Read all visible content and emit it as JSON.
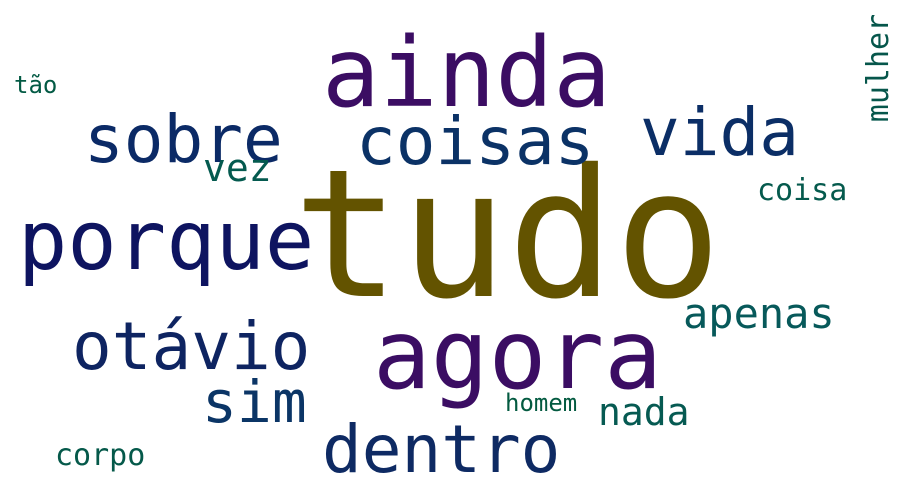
{
  "words": [
    {
      "text": "tudo",
      "color": "#635300"
    },
    {
      "text": "ainda",
      "color": "#3b0d63"
    },
    {
      "text": "agora",
      "color": "#3b0d63"
    },
    {
      "text": "porque",
      "color": "#0e1460"
    },
    {
      "text": "coisas",
      "color": "#0b3266"
    },
    {
      "text": "sobre",
      "color": "#0b2a66"
    },
    {
      "text": "otávio",
      "color": "#0e2461"
    },
    {
      "text": "vida",
      "color": "#0b2e66"
    },
    {
      "text": "dentro",
      "color": "#0e2a63"
    },
    {
      "text": "sim",
      "color": "#0b3566"
    },
    {
      "text": "apenas",
      "color": "#07595a"
    },
    {
      "text": "nada",
      "color": "#065a52"
    },
    {
      "text": "vez",
      "color": "#045a4f"
    },
    {
      "text": "coisa",
      "color": "#055a4d"
    },
    {
      "text": "mulher",
      "color": "#06564b"
    },
    {
      "text": "corpo",
      "color": "#05594a"
    },
    {
      "text": "homem",
      "color": "#035a40"
    },
    {
      "text": "tão",
      "color": "#035a44"
    }
  ]
}
